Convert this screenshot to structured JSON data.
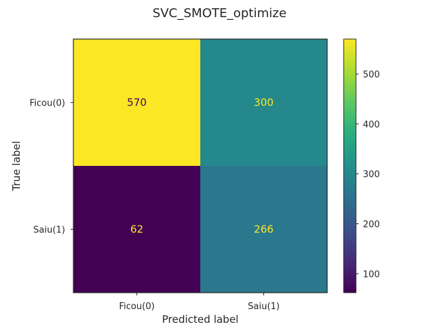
{
  "chart_data": {
    "type": "heatmap",
    "title": "SVC_SMOTE_optimize",
    "xlabel": "Predicted label",
    "ylabel": "True label",
    "x_categories": [
      "Ficou(0)",
      "Saiu(1)"
    ],
    "y_categories": [
      "Ficou(0)",
      "Saiu(1)"
    ],
    "values": [
      [
        570,
        300
      ],
      [
        62,
        266
      ]
    ],
    "colormap": "viridis",
    "color_range": [
      62,
      570
    ],
    "colorbar_ticks": [
      100,
      200,
      300,
      400,
      500
    ]
  }
}
